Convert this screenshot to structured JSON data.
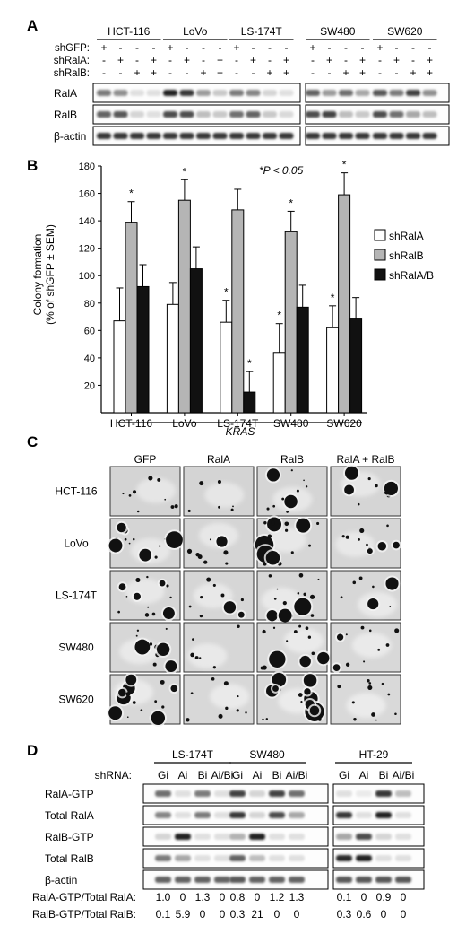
{
  "panelA": {
    "label": "A",
    "cell_lines": [
      "HCT-116",
      "LoVo",
      "LS-174T",
      "SW480",
      "SW620"
    ],
    "row_labels": [
      "shGFP:",
      "shRalA:",
      "shRalB:"
    ],
    "row_signs": [
      [
        "+",
        "-",
        "-",
        "-"
      ],
      [
        "-",
        "+",
        "-",
        "+"
      ],
      [
        "-",
        "-",
        "+",
        "+"
      ]
    ],
    "blots": [
      "RalA",
      "RalB",
      "β-actin"
    ]
  },
  "panelB": {
    "label": "B",
    "annotation": "*P < 0.05",
    "significance_mark": "*",
    "group_label": "KRAS"
  },
  "chart_data": {
    "type": "bar",
    "categories": [
      "HCT-116",
      "LoVo",
      "LS-174T",
      "SW480",
      "SW620"
    ],
    "ylabel": "Colony formation (% of shGFP ± SEM)",
    "ylim": [
      0,
      180
    ],
    "yticks": [
      20,
      40,
      60,
      80,
      100,
      120,
      140,
      160,
      180
    ],
    "legend": "right",
    "series": [
      {
        "name": "shRalA",
        "color": "#ffffff",
        "values": [
          67,
          79,
          66,
          44,
          62
        ],
        "errors": [
          24,
          16,
          16,
          21,
          16
        ],
        "significant": [
          false,
          false,
          true,
          true,
          true
        ]
      },
      {
        "name": "shRalB",
        "color": "#b5b5b5",
        "values": [
          139,
          155,
          148,
          132,
          159
        ],
        "errors": [
          15,
          15,
          15,
          15,
          16
        ],
        "significant": [
          true,
          true,
          false,
          true,
          true
        ]
      },
      {
        "name": "shRalA/B",
        "color": "#111111",
        "values": [
          92,
          105,
          15,
          77,
          69
        ],
        "errors": [
          16,
          16,
          15,
          16,
          15
        ],
        "significant": [
          false,
          false,
          true,
          false,
          false
        ]
      }
    ]
  },
  "panelC": {
    "label": "C",
    "columns": [
      "GFP",
      "RalA",
      "RalB",
      "RalA + RalB"
    ],
    "rows": [
      "HCT-116",
      "LoVo",
      "LS-174T",
      "SW480",
      "SW620"
    ],
    "colony_density": [
      [
        0.3,
        0.1,
        0.35,
        0.3
      ],
      [
        0.6,
        0.25,
        0.75,
        0.35
      ],
      [
        0.55,
        0.3,
        0.7,
        0.2
      ],
      [
        0.4,
        0.15,
        0.6,
        0.35
      ],
      [
        0.6,
        0.3,
        0.8,
        0.45
      ]
    ]
  },
  "panelD": {
    "label": "D",
    "shrna_label": "shRNA:",
    "cell_lines": [
      "LS-174T",
      "SW480",
      "HT-29"
    ],
    "lanes": [
      "Gi",
      "Ai",
      "Bi",
      "Ai/Bi"
    ],
    "blots": [
      "RalA-GTP",
      "Total RalA",
      "RalB-GTP",
      "Total RalB",
      "β-actin"
    ],
    "ratios": [
      {
        "label": "RalA-GTP/Total RalA:",
        "values": [
          "1.0",
          "0",
          "1.3",
          "0",
          "0.8",
          "0",
          "1.2",
          "1.3",
          "0.1",
          "0",
          "0.9",
          "0"
        ]
      },
      {
        "label": "RalB-GTP/Total RalB:",
        "values": [
          "0.1",
          "5.9",
          "0",
          "0",
          "0.3",
          "21",
          "0",
          "0",
          "0.3",
          "0.6",
          "0",
          "0"
        ]
      }
    ]
  }
}
